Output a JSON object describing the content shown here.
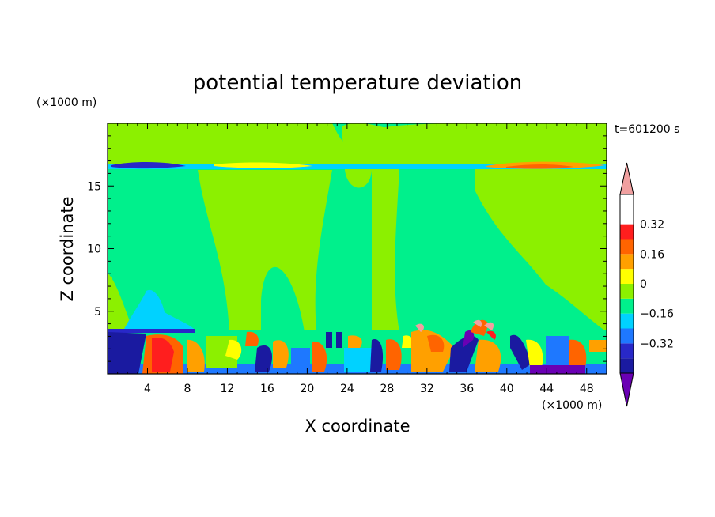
{
  "chart_data": {
    "type": "heatmap",
    "title": "potential temperature deviation",
    "xlabel": "X coordinate",
    "ylabel": "Z coordinate",
    "x_unit": "(×1000 m)",
    "y_unit": "(×1000 m)",
    "time_label": "t=601200 s",
    "xlim": [
      0,
      50
    ],
    "ylim": [
      0,
      20
    ],
    "x_ticks": [
      4,
      8,
      12,
      16,
      20,
      24,
      28,
      32,
      36,
      40,
      44,
      48
    ],
    "y_ticks": [
      5,
      10,
      15
    ],
    "colorbar": {
      "levels": [
        -0.48,
        -0.4,
        -0.32,
        -0.24,
        -0.16,
        -0.08,
        0,
        0.08,
        0.16,
        0.24,
        0.32,
        0.4,
        0.48
      ],
      "colors": [
        "#1a1aa0",
        "#2828c8",
        "#1e78ff",
        "#00d2ff",
        "#00f08c",
        "#8cf000",
        "#ffff00",
        "#ffa000",
        "#ff6400",
        "#ff1e1e"
      ],
      "under_color": "#6a00b4",
      "over_color": "#f0a0a0",
      "labels": [
        {
          "value": 0.32,
          "text": "0.32"
        },
        {
          "value": 0.16,
          "text": "0.16"
        },
        {
          "value": 0,
          "text": "0"
        },
        {
          "value": -0.16,
          "text": "−0.16"
        },
        {
          "value": -0.32,
          "text": "−0.32"
        }
      ]
    },
    "features": [
      {
        "x": [
          0,
          50
        ],
        "z": [
          0.0,
          3.5
        ],
        "description_value": "mixed",
        "min": -0.4,
        "max": 0.48
      },
      {
        "x": [
          0,
          50
        ],
        "z": [
          16.4,
          16.9
        ],
        "min": -0.4,
        "max": 0.32
      },
      {
        "x": [
          3,
          6
        ],
        "z": [
          3.5,
          6.8
        ],
        "value": -0.12
      },
      {
        "x": [
          13,
          19
        ],
        "z": [
          3.5,
          8.5
        ],
        "value": 0.04
      },
      {
        "x": [
          21,
          36
        ],
        "z": [
          3.5,
          18.5
        ],
        "value": 0.04
      }
    ]
  }
}
